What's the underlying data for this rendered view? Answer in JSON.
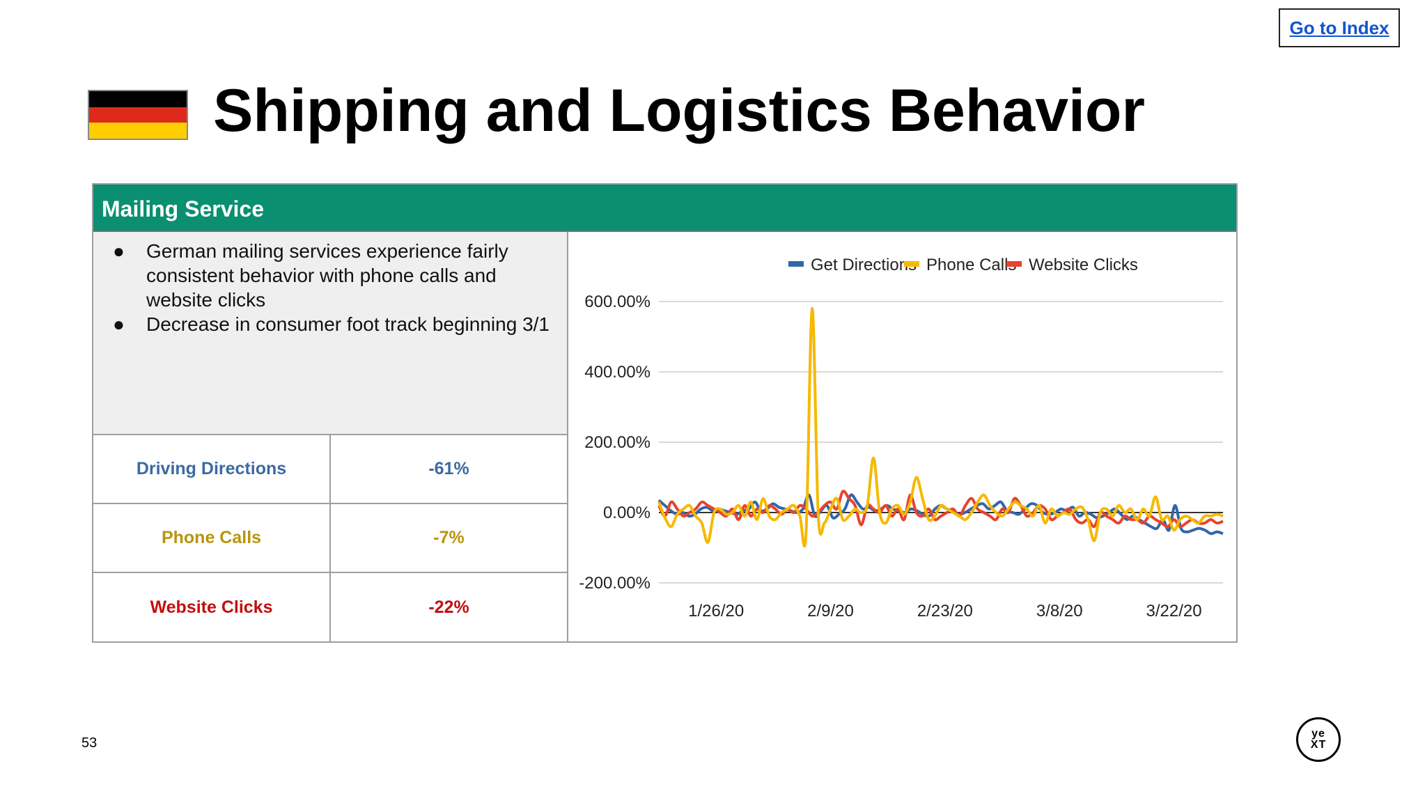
{
  "nav": {
    "go_to_index": "Go to Index"
  },
  "page": {
    "title": "Shipping and Logistics Behavior",
    "page_number": "53"
  },
  "flag": {
    "name": "germany-flag",
    "colors": [
      "#000000",
      "#dd2a1b",
      "#ffce00"
    ]
  },
  "panel": {
    "header": "Mailing Service",
    "header_color": "#0a8f70",
    "notes": [
      "German mailing services experience fairly consistent behavior with phone calls and website clicks",
      "Decrease in consumer foot track beginning 3/1"
    ],
    "metrics": [
      {
        "label": "Driving Directions",
        "value": "-61%",
        "color": "#3c6aa3"
      },
      {
        "label": "Phone Calls",
        "value": "-7%",
        "color": "#b8950f"
      },
      {
        "label": "Website Clicks",
        "value": "-22%",
        "color": "#c40e0e"
      }
    ]
  },
  "logo": {
    "line1": "ye",
    "line2": "XT"
  },
  "chart_data": {
    "type": "line",
    "legend_position": "top",
    "grid": true,
    "ylim": [
      -200,
      600
    ],
    "y_ticks": [
      "600.00%",
      "400.00%",
      "200.00%",
      "0.00%",
      "-200.00%"
    ],
    "x_tick_labels": [
      "1/26/20",
      "2/9/20",
      "2/23/20",
      "3/8/20",
      "3/22/20"
    ],
    "x_range": [
      "1/19/20",
      "3/28/20"
    ],
    "series": [
      {
        "name": "Get Directions",
        "color": "#3366a8",
        "values": [
          35,
          20,
          5,
          -5,
          0,
          -10,
          -5,
          10,
          15,
          5,
          10,
          5,
          0,
          -5,
          5,
          10,
          30,
          5,
          10,
          25,
          15,
          10,
          5,
          0,
          10,
          50,
          -10,
          5,
          20,
          -15,
          -5,
          10,
          50,
          30,
          10,
          15,
          5,
          10,
          20,
          10,
          5,
          0,
          10,
          5,
          -5,
          -10,
          10,
          20,
          10,
          5,
          -5,
          0,
          10,
          20,
          25,
          10,
          20,
          30,
          5,
          0,
          -5,
          10,
          25,
          20,
          0,
          -5,
          0,
          10,
          5,
          15,
          -10,
          0,
          -5,
          -15,
          -10,
          0,
          10,
          -5,
          -20,
          -10,
          -20,
          -30,
          -40,
          -45,
          -20,
          -50,
          20,
          -45,
          -55,
          -50,
          -45,
          -50,
          -60,
          -55,
          -60
        ]
      },
      {
        "name": "Phone Calls",
        "color": "#f6b900",
        "values": [
          30,
          -15,
          -40,
          -5,
          10,
          20,
          -10,
          -30,
          -85,
          0,
          10,
          -5,
          0,
          20,
          -10,
          30,
          -20,
          40,
          -10,
          -20,
          0,
          10,
          20,
          -10,
          -60,
          580,
          -10,
          -30,
          10,
          40,
          -20,
          -10,
          10,
          0,
          20,
          155,
          0,
          -30,
          10,
          20,
          -5,
          30,
          100,
          40,
          -20,
          -10,
          20,
          10,
          0,
          -10,
          -20,
          0,
          30,
          50,
          20,
          0,
          -10,
          10,
          30,
          20,
          10,
          -10,
          20,
          -30,
          10,
          -10,
          0,
          -5,
          10,
          15,
          -20,
          -80,
          0,
          10,
          -10,
          20,
          0,
          10,
          -20,
          10,
          -10,
          45,
          -20,
          -10,
          -50,
          -20,
          -10,
          -20,
          -30,
          -10,
          -10,
          -5,
          -10
        ]
      },
      {
        "name": "Website Clicks",
        "color": "#e8432b",
        "values": [
          20,
          -10,
          30,
          10,
          -10,
          0,
          10,
          30,
          20,
          10,
          0,
          -10,
          10,
          -20,
          20,
          -10,
          10,
          0,
          20,
          10,
          -5,
          10,
          0,
          20,
          10,
          -10,
          0,
          20,
          30,
          10,
          60,
          40,
          20,
          -35,
          20,
          10,
          0,
          20,
          -10,
          10,
          -20,
          50,
          0,
          -10,
          10,
          -20,
          -10,
          0,
          10,
          -10,
          20,
          40,
          10,
          0,
          -10,
          -20,
          10,
          0,
          40,
          20,
          -10,
          0,
          20,
          10,
          -20,
          -10,
          0,
          10,
          -20,
          -30,
          -20,
          -40,
          0,
          -10,
          -20,
          -30,
          -10,
          -20,
          -20,
          -30,
          -10,
          -20,
          -30,
          -40,
          -20,
          -40,
          -30,
          -20,
          -30,
          -30,
          -20,
          -30,
          -25
        ]
      }
    ]
  }
}
